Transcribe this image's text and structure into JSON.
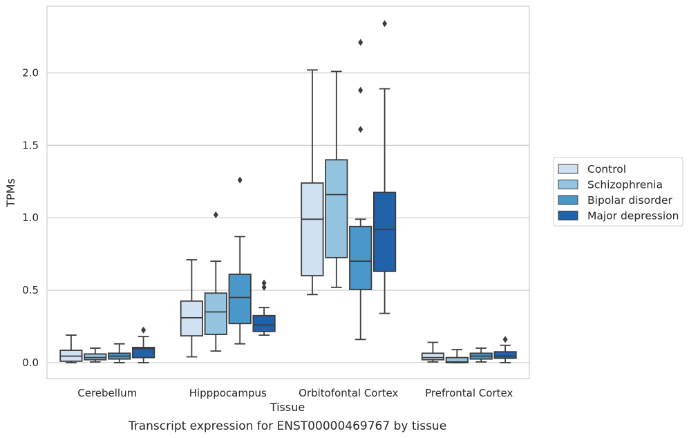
{
  "chart_data": {
    "type": "boxplot",
    "caption": "Transcript expression for ENST00000469767 by tissue",
    "xlabel": "Tissue",
    "ylabel": "TPMs",
    "ylim": [
      -0.11,
      2.46
    ],
    "yticks": [
      "0.0",
      "0.5",
      "1.0",
      "1.5",
      "2.0"
    ],
    "ytick_values": [
      0,
      0.5,
      1.0,
      1.5,
      2.0
    ],
    "grid": "horizontal",
    "legend_position": "right",
    "categories": [
      "Cerebellum",
      "Hipppocampus",
      "Orbitofontal Cortex",
      "Prefrontal Cortex"
    ],
    "series": [
      {
        "name": "Control",
        "color": "#d0e1f2",
        "boxes": [
          {
            "whislo": 0.0,
            "q1": 0.01,
            "med": 0.045,
            "q3": 0.085,
            "whishi": 0.19,
            "fliers": []
          },
          {
            "whislo": 0.04,
            "q1": 0.185,
            "med": 0.31,
            "q3": 0.425,
            "whishi": 0.71,
            "fliers": []
          },
          {
            "whislo": 0.47,
            "q1": 0.6,
            "med": 0.99,
            "q3": 1.24,
            "whishi": 2.02,
            "fliers": []
          },
          {
            "whislo": 0.005,
            "q1": 0.02,
            "med": 0.035,
            "q3": 0.065,
            "whishi": 0.14,
            "fliers": []
          }
        ]
      },
      {
        "name": "Schizophrenia",
        "color": "#94c4df",
        "boxes": [
          {
            "whislo": 0.005,
            "q1": 0.02,
            "med": 0.035,
            "q3": 0.06,
            "whishi": 0.1,
            "fliers": []
          },
          {
            "whislo": 0.08,
            "q1": 0.195,
            "med": 0.35,
            "q3": 0.48,
            "whishi": 0.7,
            "fliers": [
              1.02
            ]
          },
          {
            "whislo": 0.52,
            "q1": 0.725,
            "med": 1.16,
            "q3": 1.4,
            "whishi": 2.01,
            "fliers": []
          },
          {
            "whislo": 0.0,
            "q1": 0.0,
            "med": 0.005,
            "q3": 0.035,
            "whishi": 0.09,
            "fliers": []
          }
        ]
      },
      {
        "name": "Bipolar disorder",
        "color": "#4a98c9",
        "boxes": [
          {
            "whislo": 0.0,
            "q1": 0.025,
            "med": 0.045,
            "q3": 0.065,
            "whishi": 0.13,
            "fliers": []
          },
          {
            "whislo": 0.13,
            "q1": 0.27,
            "med": 0.45,
            "q3": 0.61,
            "whishi": 0.87,
            "fliers": [
              1.26
            ]
          },
          {
            "whislo": 0.16,
            "q1": 0.505,
            "med": 0.7,
            "q3": 0.94,
            "whishi": 0.99,
            "fliers": [
              1.61,
              1.88,
              2.21
            ]
          },
          {
            "whislo": 0.005,
            "q1": 0.025,
            "med": 0.045,
            "q3": 0.065,
            "whishi": 0.1,
            "fliers": []
          }
        ]
      },
      {
        "name": "Major depression",
        "color": "#2163aa",
        "boxes": [
          {
            "whislo": 0.0,
            "q1": 0.035,
            "med": 0.095,
            "q3": 0.105,
            "whishi": 0.18,
            "fliers": [
              0.225
            ]
          },
          {
            "whislo": 0.19,
            "q1": 0.215,
            "med": 0.26,
            "q3": 0.325,
            "whishi": 0.38,
            "fliers": [
              0.52,
              0.55
            ]
          },
          {
            "whislo": 0.34,
            "q1": 0.63,
            "med": 0.92,
            "q3": 1.175,
            "whishi": 1.89,
            "fliers": [
              2.34
            ]
          },
          {
            "whislo": 0.0,
            "q1": 0.03,
            "med": 0.045,
            "q3": 0.075,
            "whishi": 0.12,
            "fliers": [
              0.16
            ]
          }
        ]
      }
    ]
  }
}
